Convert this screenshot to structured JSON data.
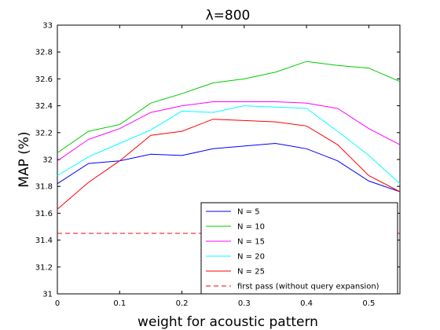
{
  "chart_data": {
    "type": "line",
    "title": "λ=800",
    "xlabel": "weight for acoustic pattern",
    "ylabel": "MAP (%)",
    "xlim": [
      0,
      0.55
    ],
    "ylim": [
      31,
      33
    ],
    "xticks": [
      0,
      0.1,
      0.2,
      0.3,
      0.4,
      0.5
    ],
    "xtick_labels": [
      "0",
      "0.1",
      "0.2",
      "0.3",
      "0.4",
      "0.5"
    ],
    "yticks": [
      31,
      31.2,
      31.4,
      31.6,
      31.8,
      32,
      32.2,
      32.4,
      32.6,
      32.8,
      33
    ],
    "ytick_labels": [
      "31",
      "31.2",
      "31.4",
      "31.6",
      "31.8",
      "32",
      "32.2",
      "32.4",
      "32.6",
      "32.8",
      "33"
    ],
    "grid": false,
    "legend_position": "bottom-right",
    "x": [
      0,
      0.05,
      0.1,
      0.15,
      0.2,
      0.25,
      0.3,
      0.35,
      0.4,
      0.45,
      0.5,
      0.55
    ],
    "series": [
      {
        "name": "N = 5",
        "color": "#0000ff",
        "dashed": false,
        "values": [
          31.82,
          31.97,
          31.99,
          32.04,
          32.03,
          32.08,
          32.1,
          32.12,
          32.08,
          31.99,
          31.84,
          31.76
        ]
      },
      {
        "name": "N = 10",
        "color": "#00cc00",
        "dashed": false,
        "values": [
          32.05,
          32.21,
          32.26,
          32.42,
          32.49,
          32.57,
          32.6,
          32.65,
          32.73,
          32.7,
          32.68,
          32.58
        ]
      },
      {
        "name": "N = 15",
        "color": "#ff00ff",
        "dashed": false,
        "values": [
          31.99,
          32.15,
          32.23,
          32.35,
          32.4,
          32.43,
          32.43,
          32.43,
          32.42,
          32.38,
          32.23,
          32.11
        ]
      },
      {
        "name": "N = 20",
        "color": "#00ffff",
        "dashed": false,
        "values": [
          31.88,
          32.02,
          32.12,
          32.22,
          32.36,
          32.35,
          32.4,
          32.39,
          32.38,
          32.21,
          32.03,
          31.82
        ]
      },
      {
        "name": "N = 25",
        "color": "#ff0000",
        "dashed": false,
        "values": [
          31.63,
          31.83,
          31.99,
          32.18,
          32.21,
          32.3,
          32.29,
          32.28,
          32.25,
          32.11,
          31.88,
          31.76
        ]
      },
      {
        "name": "first pass (without query expansion)",
        "color": "#ff0000",
        "dashed": true,
        "values": [
          31.45,
          31.45,
          31.45,
          31.45,
          31.45,
          31.45,
          31.45,
          31.45,
          31.45,
          31.45,
          31.45,
          31.45
        ]
      }
    ]
  }
}
